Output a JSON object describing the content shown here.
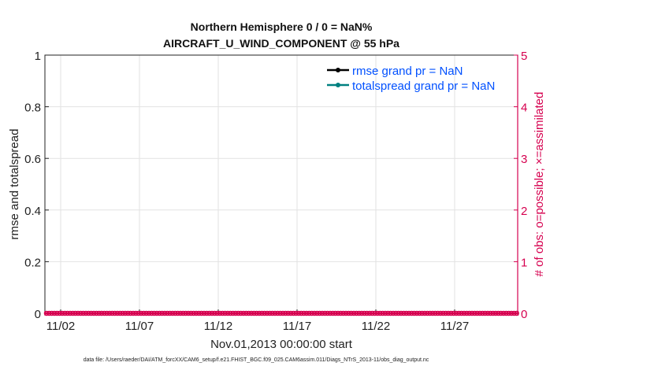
{
  "chart_data": {
    "type": "line",
    "title": [
      "Northern Hemisphere 0 / 0 = NaN%",
      "AIRCRAFT_U_WIND_COMPONENT @ 55 hPa"
    ],
    "xlabel": "Nov.01,2013 00:00:00 start",
    "ylabel": "rmse and totalspread",
    "ylabel_right": "# of obs: o=possible; ×=assimilated",
    "x_tick_labels": [
      "11/02",
      "11/07",
      "11/12",
      "11/17",
      "11/22",
      "11/27"
    ],
    "x_tick_days": [
      1,
      6,
      11,
      16,
      21,
      26
    ],
    "xlim_days": [
      0,
      30
    ],
    "ylim": [
      0,
      1
    ],
    "y_ticks": [
      "0",
      "0.2",
      "0.4",
      "0.6",
      "0.8",
      "1"
    ],
    "ylim_right": [
      0,
      5
    ],
    "y_ticks_right": [
      "0",
      "1",
      "2",
      "3",
      "4",
      "5"
    ],
    "grid": true,
    "legend_placement": "top-right",
    "series": [
      {
        "name": "rmse grand pr = NaN",
        "color": "#000000",
        "values": []
      },
      {
        "name": "totalspread grand pr = NaN",
        "color": "#008080",
        "values": []
      }
    ],
    "obs_samples_per_day": 6,
    "obs_possible": [
      0,
      0,
      0,
      0,
      0,
      0,
      0,
      0,
      0,
      0,
      0,
      0,
      0,
      0,
      0,
      0,
      0,
      0,
      0,
      0,
      0,
      0,
      0,
      0,
      0,
      0,
      0,
      0,
      0,
      0,
      0,
      0,
      0,
      0,
      0,
      0,
      0,
      0,
      0,
      0,
      0,
      0,
      0,
      0,
      0,
      0,
      0,
      0,
      0,
      0,
      0,
      0,
      0,
      0,
      0,
      0,
      0,
      0,
      0,
      0,
      0,
      0,
      0,
      0,
      0,
      0,
      0,
      0,
      0,
      0,
      0,
      0,
      0,
      0,
      0,
      0,
      0,
      0,
      0,
      0,
      0,
      0,
      0,
      0,
      0,
      0,
      0,
      0,
      0,
      0,
      0,
      0,
      0,
      0,
      0,
      0,
      0,
      0,
      0,
      0,
      0,
      0,
      0,
      0,
      0,
      0,
      0,
      0,
      0,
      0,
      0,
      0,
      0,
      0,
      0,
      0,
      0,
      0,
      0,
      0,
      0,
      0,
      0,
      0,
      0,
      0,
      0,
      0,
      0,
      0,
      0,
      0,
      0,
      0,
      0,
      0,
      0,
      0,
      0,
      0,
      0,
      0,
      0,
      0,
      0,
      0,
      0,
      0,
      0,
      0,
      0,
      0,
      0,
      0,
      0,
      0,
      0,
      0,
      0,
      0,
      0,
      0,
      0,
      0,
      0,
      0,
      0,
      0,
      0,
      0,
      0,
      0,
      0,
      0,
      0,
      0,
      0,
      0,
      0,
      0
    ],
    "obs_assimilated_color": "#d6004f",
    "right_axis_color": "#d6004f",
    "legend_text_color": "#0050ff"
  },
  "footer": "data file: /Users/raeder/DAI/ATM_forcXX/CAM6_setup/f.e21.FHIST_BGC.f09_025.CAM6assim.011/Diags_NTrS_2013-11/obs_diag_output.nc"
}
